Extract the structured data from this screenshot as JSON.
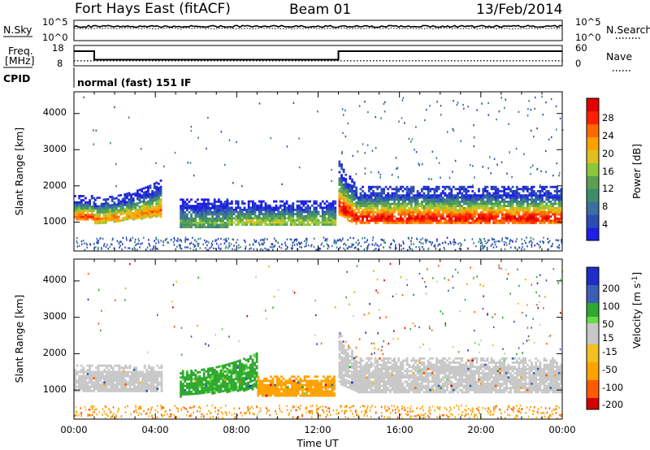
{
  "header": {
    "station": "Fort Hays East (fitACF)",
    "beam": "Beam 01",
    "date": "13/Feb/2014"
  },
  "panel_labels": {
    "nsky": "N.Sky",
    "nsearch": "N.Search",
    "freq_line1": "Freq.",
    "freq_line2": "[MHz]",
    "nave": "Nave",
    "cpid": "CPID",
    "cpid_value": "normal (fast) 151 IF"
  },
  "colors": {
    "velocity_scale": [
      "#d40000",
      "#ff5a00",
      "#ffa200",
      "#f2c020",
      "#c8c8c8",
      "#c8c8c8",
      "#66dd44",
      "#2ea82e",
      "#3a5fb5",
      "#1e2cc8"
    ],
    "power_scale": [
      "#1e1ee6",
      "#2a4db4",
      "#3a6fa0",
      "#3f8c6c",
      "#5aa050",
      "#8cc83c",
      "#e0c020",
      "#ffa000",
      "#ff6a00",
      "#ff2000",
      "#e00000"
    ]
  },
  "chart_data": [
    {
      "type": "line",
      "name": "nsky_nsearch",
      "ylabel": "N.Sky",
      "y2label": "N.Search",
      "yticks": [
        "10^5",
        "10^0"
      ],
      "y2ticks": [
        "10^5",
        "10^0"
      ],
      "series": [
        {
          "name": "N.Sky",
          "level": 0.7
        },
        {
          "name": "N.Search",
          "level": 0.6
        }
      ]
    },
    {
      "type": "line",
      "name": "freq_nave",
      "ylabel": "Freq. [MHz]",
      "y2label": "Nave",
      "yticks": [
        "18",
        "8"
      ],
      "y2ticks": [
        "60",
        "0"
      ],
      "ylim": [
        8,
        18
      ],
      "y2lim": [
        0,
        60
      ],
      "series": [
        {
          "name": "Freq.",
          "x": [
            0,
            1,
            1,
            13,
            13,
            24
          ],
          "y": [
            15.2,
            15.2,
            11.0,
            11.0,
            15.2,
            15.2
          ]
        },
        {
          "name": "Nave",
          "x": [
            0,
            24
          ],
          "y": [
            15,
            15
          ]
        }
      ]
    },
    {
      "type": "heatmap",
      "name": "power",
      "ylabel": "Slant Range [km]",
      "xlim": [
        0,
        24
      ],
      "ylim": [
        200,
        4600
      ],
      "yticks": [
        "1000",
        "2000",
        "3000",
        "4000"
      ],
      "colorbar": {
        "label": "Power [dB]",
        "ticks": [
          "4",
          "8",
          "12",
          "16",
          "20",
          "24",
          "28"
        ],
        "range": [
          0,
          32
        ]
      },
      "bands": [
        {
          "t0": 0,
          "t1": 1.0,
          "rlo": 1050,
          "rhi": 1750,
          "vmax": 27
        },
        {
          "t0": 1.0,
          "t1": 4.3,
          "rlo": 980,
          "rhi": 1700,
          "vmax": 24
        },
        {
          "t0": 5.2,
          "t1": 7.5,
          "rlo": 850,
          "rhi": 1650,
          "vmax": 14
        },
        {
          "t0": 7.5,
          "t1": 12.8,
          "rlo": 900,
          "rhi": 1600,
          "vmax": 18
        },
        {
          "t0": 13.0,
          "t1": 24.0,
          "rlo": 950,
          "rhi": 2000,
          "vmax": 30
        }
      ]
    },
    {
      "type": "heatmap",
      "name": "velocity",
      "ylabel": "Slant Range [km]",
      "xlabel": "Time UT",
      "xlim": [
        0,
        24
      ],
      "ylim": [
        200,
        4600
      ],
      "yticks": [
        "1000",
        "2000",
        "3000",
        "4000"
      ],
      "xticks": [
        "00:00",
        "04:00",
        "08:00",
        "12:00",
        "16:00",
        "20:00",
        "00:00"
      ],
      "colorbar": {
        "label": "Velocity [m s^-1]",
        "ticks": [
          "200",
          "100",
          "50",
          "15",
          "-15",
          "-50",
          "-100",
          "-200"
        ]
      },
      "bands": [
        {
          "t0": 0,
          "t1": 4.3,
          "rlo": 1000,
          "rhi": 1700,
          "v": 0
        },
        {
          "t0": 5.2,
          "t1": 9.0,
          "rlo": 850,
          "rhi": 1550,
          "v": 40
        },
        {
          "t0": 9.0,
          "t1": 12.8,
          "rlo": 850,
          "rhi": 1400,
          "v": -50
        },
        {
          "t0": 13.0,
          "t1": 24.0,
          "rlo": 950,
          "rhi": 1900,
          "v": 0
        }
      ]
    }
  ]
}
